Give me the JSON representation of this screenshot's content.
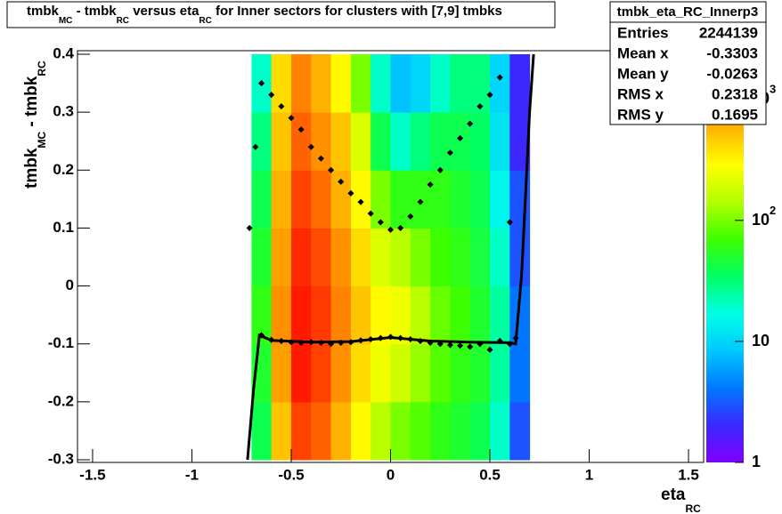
{
  "chart_data": {
    "type": "heatmap",
    "title": [
      "tmbk",
      "MC",
      " - tmbk",
      "RC",
      " versus eta",
      "RC",
      " for Inner sectors for clusters with [7,9] tmbks"
    ],
    "x_label": [
      "eta",
      "RC"
    ],
    "y_label": [
      "tmbk",
      "MC",
      " - tmbk",
      "RC"
    ],
    "xlim": [
      -1.576,
      1.576
    ],
    "ylim": [
      -0.3,
      0.4
    ],
    "xticks": [
      -1.5,
      -1,
      -0.5,
      0,
      0.5,
      1,
      1.5
    ],
    "yticks": [
      -0.3,
      -0.2,
      -0.1,
      0,
      0.1,
      0.2,
      0.3,
      0.4
    ],
    "zlim": [
      1,
      2400
    ],
    "log_z": true,
    "zticks": [
      {
        "value": 1,
        "label": "1"
      },
      {
        "value": 10,
        "label": "10"
      },
      {
        "value": 100,
        "label": "10",
        "exp": "2"
      },
      {
        "value": 1000,
        "label": "10",
        "exp": "3"
      }
    ],
    "colors": [
      "#8000ff",
      "#3c28ff",
      "#0078ff",
      "#00c8ff",
      "#00ffe6",
      "#00ff64",
      "#3cff00",
      "#b4ff00",
      "#ffff00",
      "#ffb400",
      "#ff6400",
      "#ff0000"
    ],
    "x_bins": [
      -0.7,
      -0.6,
      -0.5,
      -0.4,
      -0.3,
      -0.2,
      -0.1,
      0,
      0.1,
      0.2,
      0.3,
      0.4,
      0.5,
      0.6,
      0.7
    ],
    "y_bins": [
      -0.3,
      -0.2,
      -0.1,
      0,
      0.1,
      0.2,
      0.3,
      0.4
    ],
    "z": [
      [
        40,
        500,
        1500,
        1200,
        600,
        300,
        150,
        100,
        80,
        60,
        50,
        40,
        20,
        3
      ],
      [
        50,
        700,
        2000,
        1500,
        800,
        400,
        250,
        180,
        120,
        80,
        60,
        50,
        25,
        4
      ],
      [
        60,
        800,
        2000,
        1600,
        900,
        500,
        300,
        250,
        150,
        90,
        70,
        50,
        25,
        4
      ],
      [
        50,
        700,
        1800,
        1400,
        800,
        400,
        200,
        150,
        100,
        70,
        60,
        45,
        20,
        3
      ],
      [
        40,
        600,
        1500,
        1100,
        600,
        300,
        100,
        60,
        60,
        60,
        50,
        40,
        15,
        3
      ],
      [
        30,
        500,
        1200,
        800,
        500,
        200,
        40,
        20,
        30,
        40,
        40,
        35,
        12,
        2
      ],
      [
        20,
        400,
        900,
        600,
        300,
        100,
        20,
        8,
        10,
        20,
        30,
        30,
        10,
        2
      ]
    ],
    "profiles": [
      {
        "x": [
          -0.71,
          -0.68,
          -0.65,
          -0.6,
          -0.55,
          -0.5,
          -0.45,
          -0.4,
          -0.35,
          -0.3,
          -0.25,
          -0.2,
          -0.15,
          -0.1,
          -0.05,
          0,
          0.05,
          0.1,
          0.15,
          0.2,
          0.25,
          0.3,
          0.35,
          0.4,
          0.45,
          0.5,
          0.55,
          0.6
        ],
        "values": [
          0.1,
          0.24,
          0.35,
          0.33,
          0.31,
          0.29,
          0.27,
          0.24,
          0.22,
          0.2,
          0.18,
          0.16,
          0.145,
          0.125,
          0.11,
          0.097,
          0.1,
          0.12,
          0.145,
          0.175,
          0.2,
          0.23,
          0.255,
          0.28,
          0.31,
          0.33,
          0.36,
          0.11
        ]
      },
      {
        "x": [
          -0.65,
          -0.6,
          -0.55,
          -0.5,
          -0.45,
          -0.4,
          -0.35,
          -0.3,
          -0.25,
          -0.2,
          -0.15,
          -0.1,
          -0.05,
          0,
          0.05,
          0.1,
          0.15,
          0.2,
          0.25,
          0.3,
          0.35,
          0.4,
          0.45,
          0.5,
          0.55,
          0.6,
          0.63
        ],
        "values": [
          -0.085,
          -0.093,
          -0.095,
          -0.097,
          -0.098,
          -0.097,
          -0.098,
          -0.1,
          -0.098,
          -0.097,
          -0.094,
          -0.092,
          -0.09,
          -0.088,
          -0.09,
          -0.092,
          -0.095,
          -0.098,
          -0.1,
          -0.102,
          -0.103,
          -0.105,
          -0.1,
          -0.11,
          -0.095,
          -0.1,
          -0.09
        ]
      }
    ],
    "curve": {
      "x": [
        -0.72,
        -0.69,
        -0.66,
        -0.6,
        -0.4,
        -0.2,
        0,
        0.2,
        0.4,
        0.6,
        0.63,
        0.66,
        0.7,
        0.72
      ],
      "values": [
        -0.3,
        -0.18,
        -0.085,
        -0.094,
        -0.097,
        -0.096,
        -0.089,
        -0.095,
        -0.097,
        -0.098,
        -0.1,
        0.02,
        0.3,
        0.4
      ]
    },
    "stats": {
      "name": "tmbk_eta_RC_Innerp3",
      "rows": [
        [
          "Entries",
          2244139
        ],
        [
          "Mean x",
          -0.3303
        ],
        [
          "Mean y",
          -0.0263
        ],
        [
          "RMS x",
          0.2318
        ],
        [
          "RMS y",
          0.1695
        ]
      ]
    }
  }
}
